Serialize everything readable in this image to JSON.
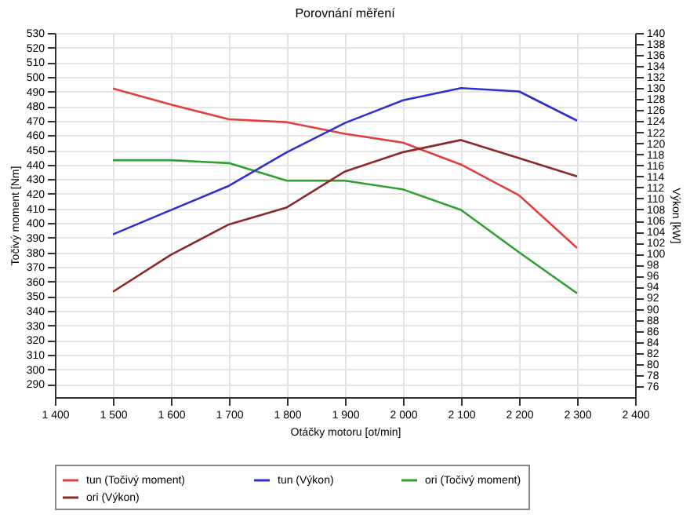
{
  "chart_data": {
    "type": "line",
    "title": "Porovnání měření",
    "xlabel": "Otáčky motoru [ot/min]",
    "ylabel": "Točivý moment [Nm]",
    "y2label": "Výkon [kW]",
    "x": [
      1500,
      1600,
      1700,
      1800,
      1900,
      2000,
      2100,
      2200,
      2300
    ],
    "series": [
      {
        "name": "tun (Točivý moment)",
        "color": "#e04040",
        "values": [
          492,
          481,
          471,
          469,
          461,
          455,
          440,
          419,
          383
        ]
      },
      {
        "name": "tun (Výkon)",
        "color": "#3030d0",
        "axis": "y2",
        "values": [
          103.5,
          107.9,
          112.3,
          118.4,
          123.7,
          127.8,
          130,
          129.4,
          124.1
        ]
      },
      {
        "name": "ori (Točivý moment)",
        "color": "#30a030",
        "values": [
          443,
          443,
          441,
          429,
          429,
          423,
          409,
          380,
          352
        ]
      },
      {
        "name": "ori (Výkon)",
        "color": "#8b2a2a",
        "axis": "y2",
        "values": [
          93.1,
          99.8,
          105.3,
          108.4,
          114.9,
          118.4,
          120.6,
          117.3,
          114.0
        ]
      }
    ],
    "xlim": [
      1400,
      2400
    ],
    "xticks": [
      {
        "value": 1400,
        "label": "1 400"
      },
      {
        "value": 1500,
        "label": "1 500"
      },
      {
        "value": 1600,
        "label": "1 600"
      },
      {
        "value": 1700,
        "label": "1 700"
      },
      {
        "value": 1800,
        "label": "1 800"
      },
      {
        "value": 1900,
        "label": "1 900"
      },
      {
        "value": 2000,
        "label": "2 000"
      },
      {
        "value": 2100,
        "label": "2 100"
      },
      {
        "value": 2200,
        "label": "2 200"
      },
      {
        "value": 2300,
        "label": "2 300"
      },
      {
        "value": 2400,
        "label": "2 400"
      }
    ],
    "ylim": [
      281,
      530
    ],
    "yticks": [
      290,
      300,
      310,
      320,
      330,
      340,
      350,
      360,
      370,
      380,
      390,
      400,
      410,
      420,
      430,
      440,
      450,
      460,
      470,
      480,
      490,
      500,
      510,
      520,
      530
    ],
    "y2lim": [
      74,
      140
    ],
    "y2ticks": [
      76,
      78,
      80,
      82,
      84,
      86,
      88,
      90,
      92,
      94,
      96,
      98,
      100,
      102,
      104,
      106,
      108,
      110,
      112,
      114,
      116,
      118,
      120,
      122,
      124,
      126,
      128,
      130,
      132,
      134,
      136,
      138,
      140
    ],
    "grid": true,
    "legend": "bottom",
    "marker": "none",
    "line_style": "solid"
  }
}
